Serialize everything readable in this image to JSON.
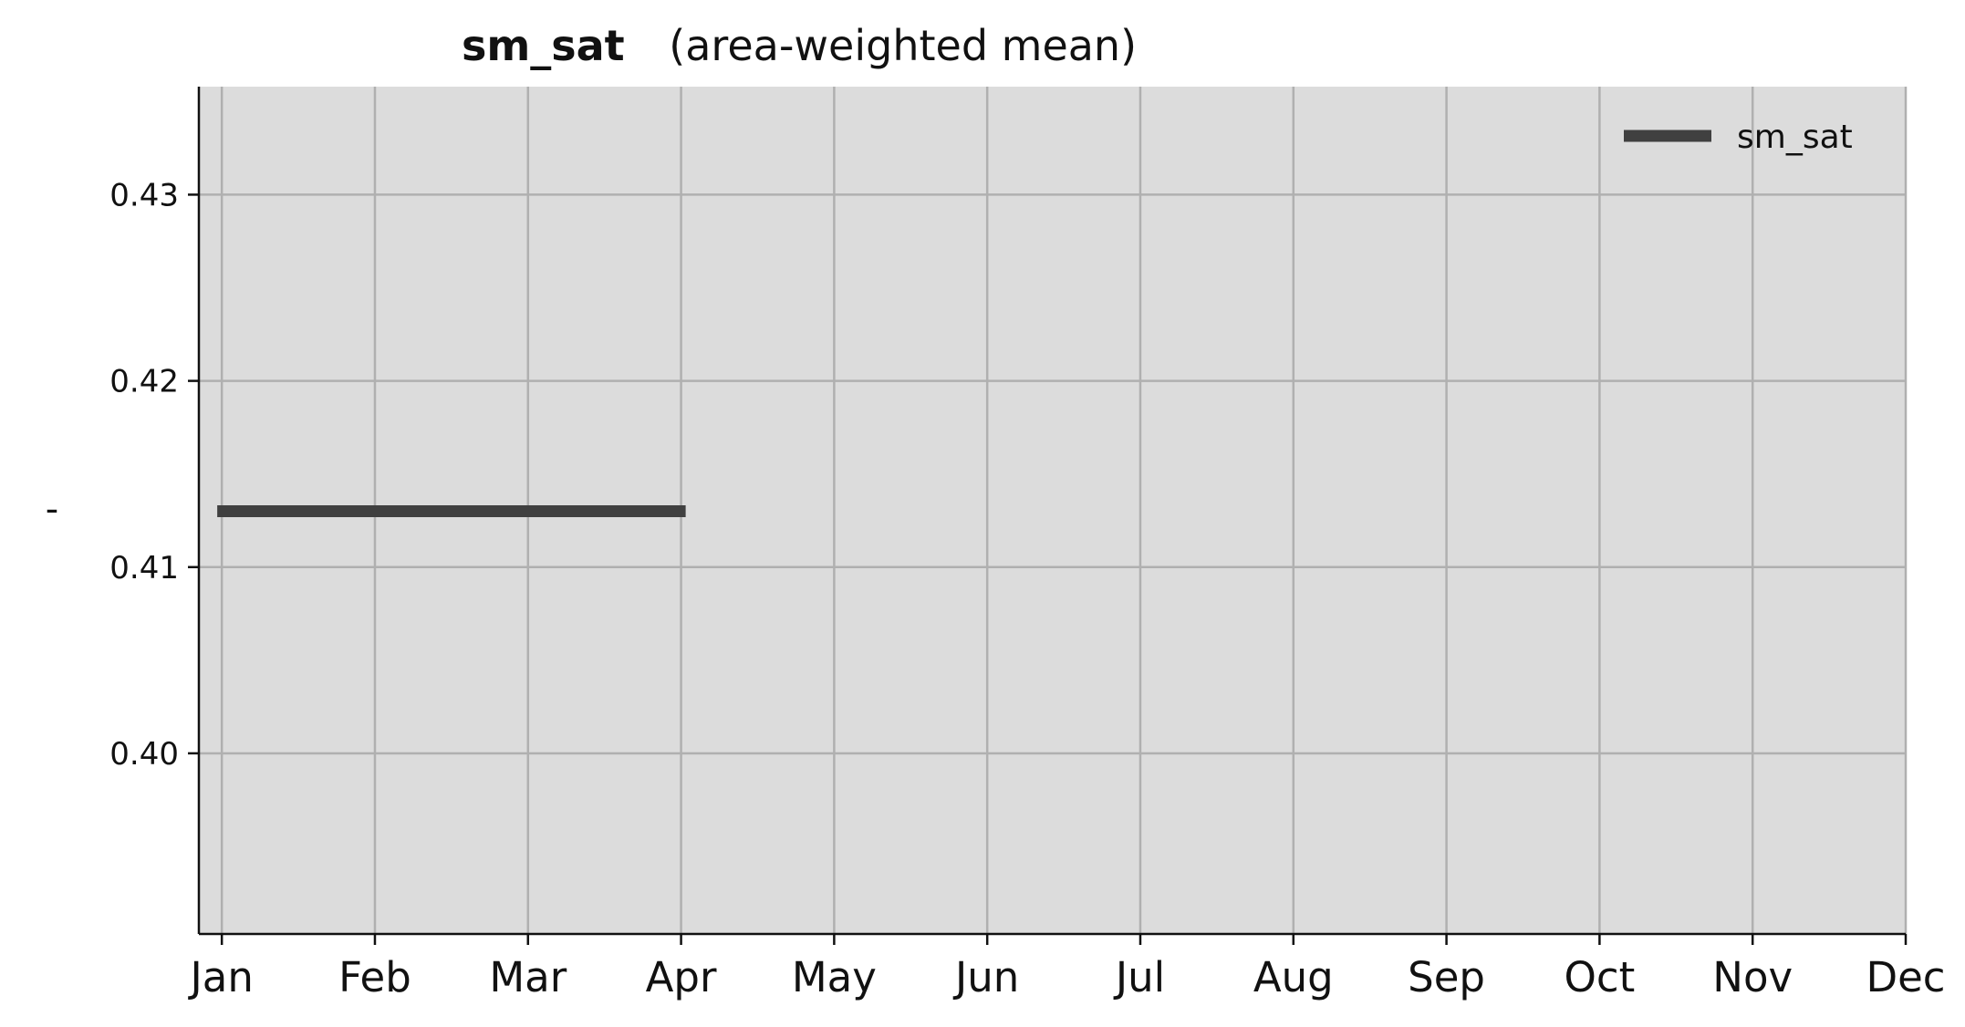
{
  "chart_data": {
    "type": "line",
    "title": "sm_sat",
    "subtitle": "(area-weighted mean)",
    "xlabel": "",
    "ylabel": "-",
    "x_ticks": [
      "Jan",
      "Feb",
      "Mar",
      "Apr",
      "May",
      "Jun",
      "Jul",
      "Aug",
      "Sep",
      "Oct",
      "Nov",
      "Dec"
    ],
    "y_ticks": [
      "0.40",
      "0.41",
      "0.42",
      "0.43"
    ],
    "y_tick_values": [
      0.4,
      0.41,
      0.42,
      0.43
    ],
    "ylim": [
      0.3903,
      0.4358
    ],
    "xlim": [
      -0.15,
      11.0
    ],
    "grid": true,
    "legend_position": "top-right",
    "series": [
      {
        "name": "sm_sat",
        "color": "#404040",
        "x": [
          -0.03,
          3.03
        ],
        "y": [
          0.413,
          0.413
        ]
      }
    ],
    "colors": {
      "plot_background": "#dcdcdc",
      "grid": "#b0b0b0",
      "axis": "#111111"
    }
  }
}
